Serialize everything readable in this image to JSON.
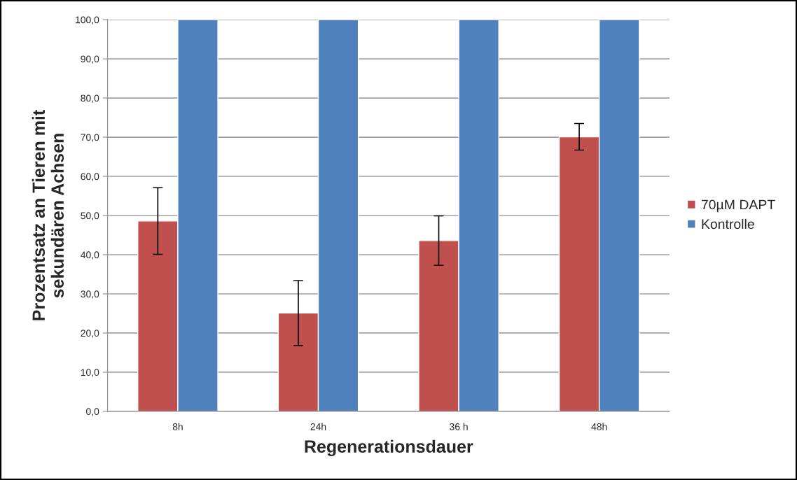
{
  "chart_data": {
    "type": "bar",
    "xlabel": "Regenerationsdauer",
    "ylabel": "Prozentsatz an Tieren mit\nsekundären Achsen",
    "categories": [
      "8h",
      "24h",
      "36 h",
      "48h"
    ],
    "series": [
      {
        "name": "70µM DAPT",
        "color": "#c0504d",
        "values": [
          48.6,
          25.1,
          43.6,
          70.1
        ],
        "errors": [
          8.5,
          8.3,
          6.3,
          3.4
        ]
      },
      {
        "name": "Kontrolle",
        "color": "#4f81bd",
        "values": [
          100,
          100,
          100,
          100
        ]
      }
    ],
    "ylim": [
      0,
      100
    ],
    "yticks": [
      {
        "value": 0,
        "label": "0,0"
      },
      {
        "value": 10,
        "label": "10,0"
      },
      {
        "value": 20,
        "label": "20,0"
      },
      {
        "value": 30,
        "label": "30,0"
      },
      {
        "value": 40,
        "label": "40,0"
      },
      {
        "value": 50,
        "label": "50,0"
      },
      {
        "value": 60,
        "label": "60,0"
      },
      {
        "value": 70,
        "label": "70,0"
      },
      {
        "value": 80,
        "label": "80,0"
      },
      {
        "value": 90,
        "label": "90,0"
      },
      {
        "value": 100,
        "label": "100,0"
      }
    ],
    "grid": "y",
    "legend": "right"
  }
}
